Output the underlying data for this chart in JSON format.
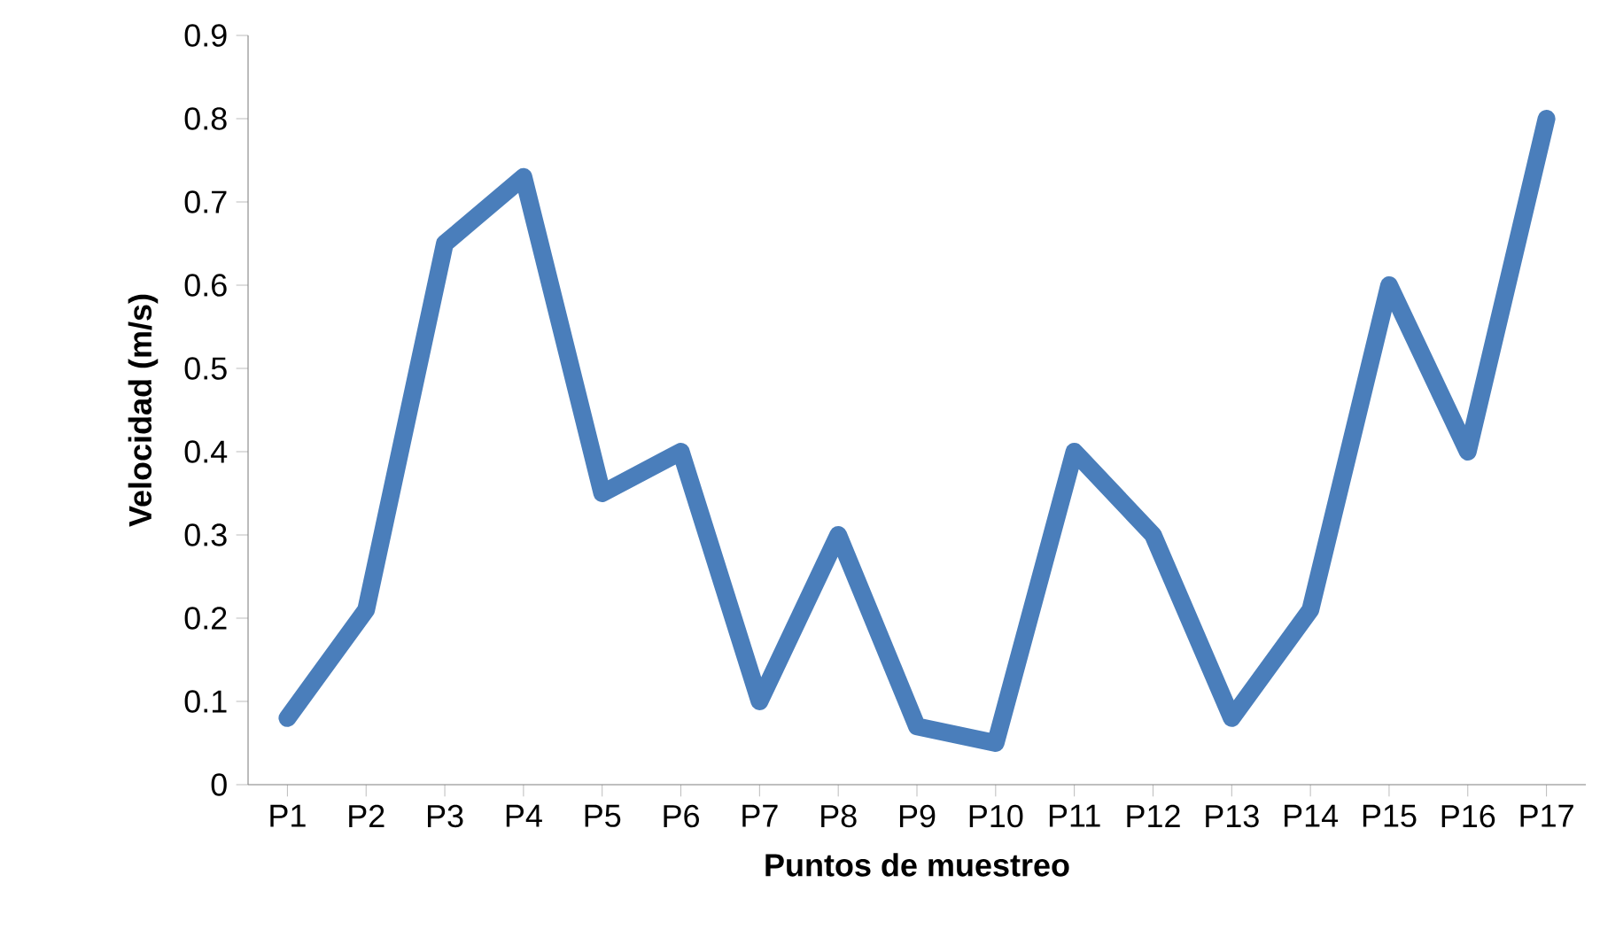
{
  "chart_data": {
    "type": "line",
    "xlabel": "Puntos de muestreo",
    "ylabel": "Velocidad (m/s)",
    "categories": [
      "P1",
      "P2",
      "P3",
      "P4",
      "P5",
      "P6",
      "P7",
      "P8",
      "P9",
      "P10",
      "P11",
      "P12",
      "P13",
      "P14",
      "P15",
      "P16",
      "P17"
    ],
    "series": [
      {
        "color": "#4a7ebb",
        "values": [
          0.08,
          0.21,
          0.65,
          0.73,
          0.35,
          0.4,
          0.1,
          0.3,
          0.07,
          0.05,
          0.4,
          0.3,
          0.08,
          0.21,
          0.6,
          0.4,
          0.8
        ]
      }
    ],
    "ylim": [
      0,
      0.9
    ],
    "yticks": [
      0,
      0.1,
      0.2,
      0.3,
      0.4,
      0.5,
      0.6,
      0.7,
      0.8,
      0.9
    ],
    "marker": "none",
    "line_style": "solid"
  }
}
